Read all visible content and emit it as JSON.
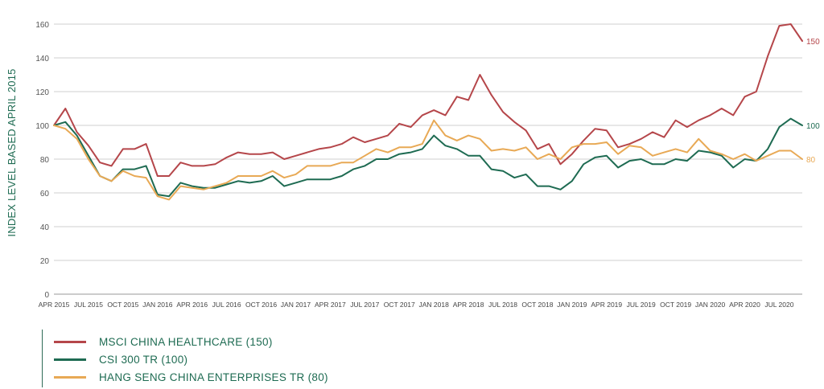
{
  "chart_data": {
    "type": "line",
    "ylabel": "INDEX LEVEL BASED APRIL 2015",
    "xlabel": "",
    "ylim": [
      0,
      160
    ],
    "yticks": [
      0,
      20,
      40,
      60,
      80,
      100,
      120,
      140,
      160
    ],
    "grid": true,
    "legend_position": "bottom-left",
    "x_tick_labels": [
      "APR 2015",
      "JUL 2015",
      "OCT 2015",
      "JAN 2016",
      "APR 2016",
      "JUL 2016",
      "OCT 2016",
      "JAN 2017",
      "APR 2017",
      "JUL 2017",
      "OCT 2017",
      "JAN 2018",
      "APR 2018",
      "JUL 2018",
      "OCT 2018",
      "JAN 2019",
      "APR 2019",
      "JUL 2019",
      "OCT 2019",
      "JAN 2020",
      "APR 2020",
      "JUL 2020"
    ],
    "series": [
      {
        "name": "MSCI CHINA HEALTHCARE (150)",
        "color": "#b5464a",
        "end_label": "150",
        "values": [
          100,
          110,
          96,
          88,
          78,
          76,
          86,
          86,
          89,
          70,
          70,
          78,
          76,
          76,
          77,
          81,
          84,
          83,
          83,
          84,
          80,
          82,
          84,
          86,
          87,
          89,
          93,
          90,
          92,
          94,
          101,
          99,
          106,
          109,
          106,
          117,
          115,
          130,
          118,
          108,
          102,
          97,
          86,
          89,
          77,
          83,
          91,
          98,
          97,
          87,
          89,
          92,
          96,
          93,
          103,
          99,
          103,
          106,
          110,
          106,
          117,
          120,
          141,
          159,
          160,
          150
        ]
      },
      {
        "name": "CSI 300 TR (100)",
        "color": "#1e6b52",
        "end_label": "100",
        "values": [
          100,
          102,
          94,
          82,
          70,
          67,
          74,
          74,
          76,
          59,
          58,
          66,
          64,
          63,
          63,
          65,
          67,
          66,
          67,
          70,
          64,
          66,
          68,
          68,
          68,
          70,
          74,
          76,
          80,
          80,
          83,
          84,
          86,
          94,
          88,
          86,
          82,
          82,
          74,
          73,
          69,
          71,
          64,
          64,
          62,
          67,
          77,
          81,
          82,
          75,
          79,
          80,
          77,
          77,
          80,
          79,
          85,
          84,
          82,
          75,
          80,
          79,
          86,
          99,
          104,
          100
        ]
      },
      {
        "name": "HANG SENG CHINA ENTERPRISES TR (80)",
        "color": "#e8a955",
        "end_label": "80",
        "values": [
          100,
          98,
          92,
          80,
          70,
          67,
          73,
          70,
          69,
          58,
          56,
          64,
          63,
          62,
          64,
          66,
          70,
          70,
          70,
          73,
          69,
          71,
          76,
          76,
          76,
          78,
          78,
          82,
          86,
          84,
          87,
          87,
          89,
          103,
          94,
          91,
          94,
          92,
          85,
          86,
          85,
          87,
          80,
          83,
          80,
          87,
          89,
          89,
          90,
          83,
          88,
          87,
          82,
          84,
          86,
          84,
          92,
          85,
          83,
          80,
          83,
          79,
          82,
          85,
          85,
          80
        ]
      }
    ]
  }
}
